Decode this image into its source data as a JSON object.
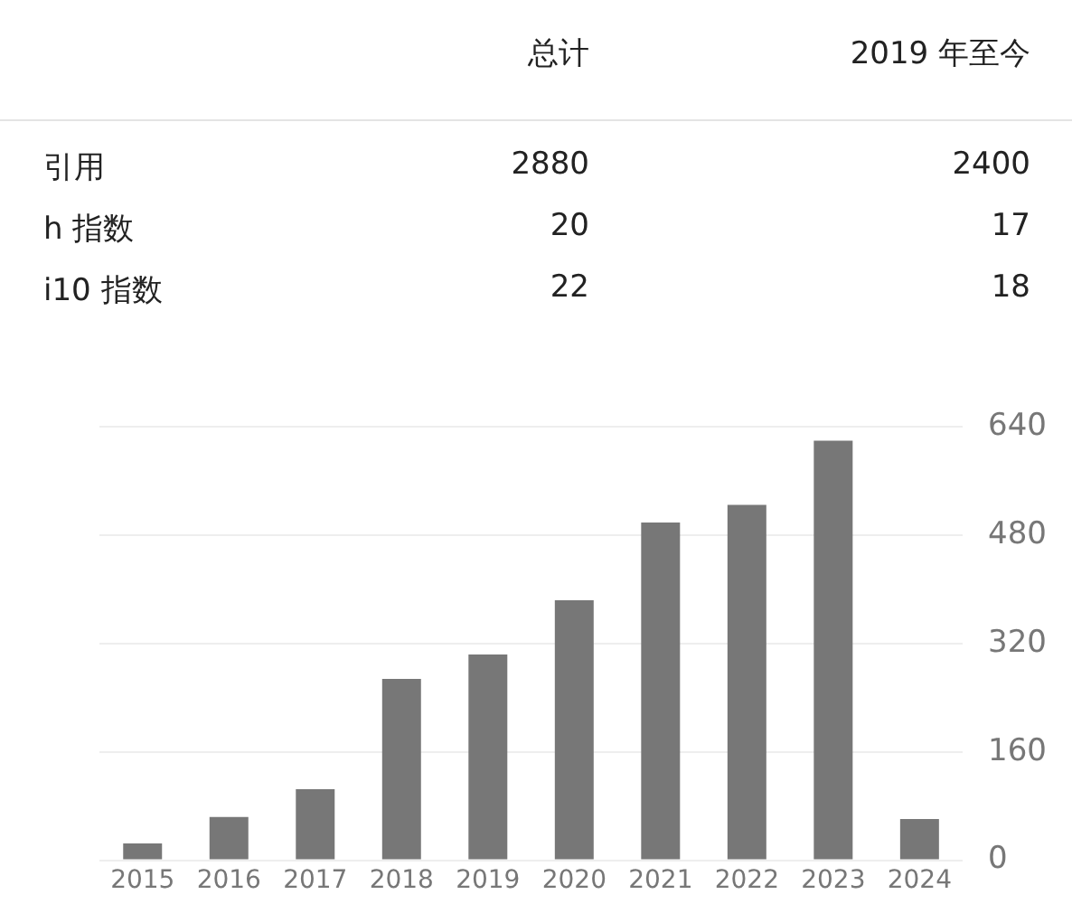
{
  "chart_data": {
    "type": "bar",
    "annotations": [
      "总计",
      "2019 年至今",
      "引用",
      "2880",
      "2400",
      "h 指数",
      "20",
      "17",
      "i10 指数",
      "22",
      "18"
    ],
    "categories": [
      "2015",
      "2016",
      "2017",
      "2018",
      "2019",
      "2020",
      "2021",
      "2022",
      "2023",
      "2024"
    ],
    "values": [
      25,
      64,
      105,
      268,
      304,
      384,
      499,
      525,
      620,
      61
    ],
    "color": "#777777",
    "ylim": [
      0,
      640
    ],
    "yticks": [
      0,
      160,
      320,
      480,
      640
    ],
    "grid": "y",
    "legend": false
  }
}
